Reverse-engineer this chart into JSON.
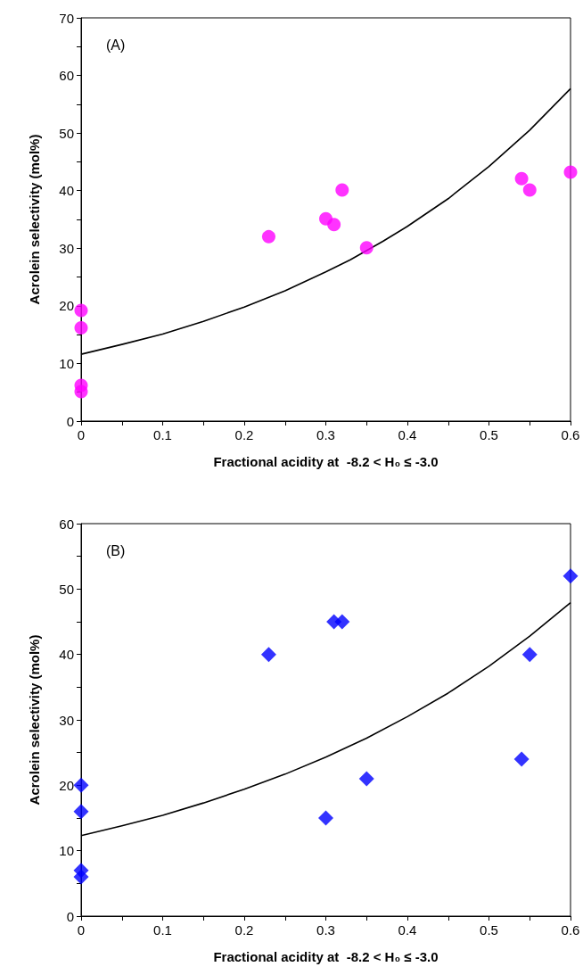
{
  "chart_data": [
    {
      "type": "scatter",
      "annotations": [
        "(A)"
      ],
      "xlabel": "Fractional acidity at  -8.2 < H₀ ≤ -3.0",
      "ylabel": "Acrolein selectivity (mol%)",
      "marker": "circle",
      "xlim": [
        0,
        0.6
      ],
      "xticks": [
        0,
        {
          "value": 0.05,
          "label": null
        },
        0.1,
        {
          "value": 0.15,
          "label": null
        },
        0.2,
        {
          "value": 0.25,
          "label": null
        },
        0.3,
        {
          "value": 0.35,
          "label": null
        },
        0.4,
        {
          "value": 0.45,
          "label": null
        },
        0.5,
        {
          "value": 0.55,
          "label": null
        },
        0.6
      ],
      "ylim": [
        0,
        70
      ],
      "yticks": [
        0,
        {
          "value": 5,
          "label": null
        },
        10,
        {
          "value": 15,
          "label": null
        },
        20,
        {
          "value": 25,
          "label": null
        },
        30,
        {
          "value": 35,
          "label": null
        },
        40,
        {
          "value": 45,
          "label": null
        },
        50,
        {
          "value": 55,
          "label": null
        },
        60,
        {
          "value": 65,
          "label": null
        },
        70
      ],
      "series": [
        {
          "type": "scatter",
          "color": "#ff00ff",
          "x": [
            0,
            0,
            0,
            0,
            0.23,
            0.3,
            0.31,
            0.32,
            0.35,
            0.54,
            0.55,
            0.6
          ],
          "values": [
            19.2,
            16.2,
            6.2,
            5.1,
            32,
            35.1,
            34.1,
            40.1,
            30.1,
            42.1,
            40.1,
            43.2
          ]
        },
        {
          "type": "line",
          "color": "#000000",
          "marker": "none",
          "x": [
            0,
            0.05,
            0.1,
            0.15,
            0.2,
            0.25,
            0.3,
            0.33,
            0.37,
            0.4,
            0.45,
            0.5,
            0.55,
            0.6
          ],
          "values": [
            11.6,
            13.3,
            15.1,
            17.3,
            19.8,
            22.6,
            25.9,
            28.0,
            31.2,
            33.8,
            38.6,
            44.2,
            50.5,
            57.7
          ]
        }
      ]
    },
    {
      "type": "scatter",
      "annotations": [
        "(B)"
      ],
      "xlabel": "Fractional acidity at  -8.2 < H₀ ≤ -3.0",
      "ylabel": "Acrolein selectivity (mol%)",
      "marker": "diamond",
      "xlim": [
        0,
        0.6
      ],
      "xticks": [
        0,
        {
          "value": 0.05,
          "label": null
        },
        0.1,
        {
          "value": 0.15,
          "label": null
        },
        0.2,
        {
          "value": 0.25,
          "label": null
        },
        0.3,
        {
          "value": 0.35,
          "label": null
        },
        0.4,
        {
          "value": 0.45,
          "label": null
        },
        0.5,
        {
          "value": 0.55,
          "label": null
        },
        0.6
      ],
      "ylim": [
        0,
        60
      ],
      "yticks": [
        0,
        {
          "value": 5,
          "label": null
        },
        10,
        {
          "value": 15,
          "label": null
        },
        20,
        {
          "value": 25,
          "label": null
        },
        30,
        {
          "value": 35,
          "label": null
        },
        40,
        {
          "value": 45,
          "label": null
        },
        50,
        {
          "value": 55,
          "label": null
        },
        60
      ],
      "series": [
        {
          "type": "scatter",
          "color": "#0000ff",
          "x": [
            0,
            0,
            0,
            0,
            0.23,
            0.3,
            0.31,
            0.32,
            0.35,
            0.54,
            0.55,
            0.6
          ],
          "values": [
            20,
            16,
            7,
            6,
            40,
            15,
            45,
            45,
            21,
            24,
            40,
            52
          ]
        },
        {
          "type": "line",
          "color": "#000000",
          "marker": "none",
          "x": [
            0,
            0.05,
            0.1,
            0.15,
            0.2,
            0.25,
            0.3,
            0.35,
            0.4,
            0.45,
            0.5,
            0.55,
            0.6
          ],
          "values": [
            12.3,
            13.8,
            15.4,
            17.3,
            19.4,
            21.7,
            24.3,
            27.2,
            30.5,
            34.1,
            38.2,
            42.8,
            47.9
          ]
        }
      ]
    }
  ]
}
